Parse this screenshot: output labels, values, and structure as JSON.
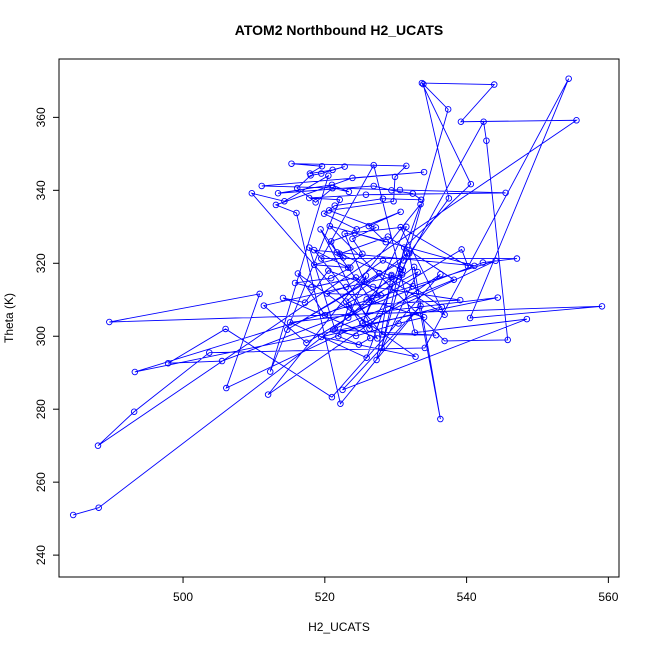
{
  "chart_data": {
    "type": "line",
    "title": "ATOM2 Northbound H2_UCATS",
    "xlabel": "H2_UCATS",
    "ylabel": "Theta (K)",
    "xlim": [
      482.5,
      561.5
    ],
    "ylim": [
      234,
      376
    ],
    "xticks": [
      500,
      520,
      540,
      560
    ],
    "yticks": [
      240,
      260,
      280,
      300,
      320,
      340,
      360
    ],
    "grid": false,
    "legend": "none",
    "color": "#0000ff",
    "series": [
      {
        "marker": "open-circle",
        "points": [
          [
            484.5,
            251
          ],
          [
            488.1,
            253
          ],
          [
            532.6,
            319
          ],
          [
            536.3,
            277.3
          ],
          [
            531.9,
            322.7
          ],
          [
            537.5,
            337.8
          ],
          [
            533.9,
            369.1
          ],
          [
            537.4,
            362.2
          ],
          [
            528.0,
            296.8
          ],
          [
            531.2,
            324.3
          ],
          [
            540.6,
            341.7
          ],
          [
            533.7,
            369.4
          ],
          [
            543.9,
            369.0
          ],
          [
            539.2,
            358.8
          ],
          [
            555.5,
            359.2
          ],
          [
            488.0,
            270.0
          ],
          [
            493.1,
            279.3
          ],
          [
            503.7,
            295.5
          ],
          [
            534.1,
            296.8
          ],
          [
            554.4,
            370.6
          ],
          [
            540.5,
            305.0
          ],
          [
            559.1,
            308.2
          ],
          [
            489.6,
            303.9
          ],
          [
            510.8,
            311.6
          ],
          [
            506.1,
            285.8
          ],
          [
            544.1,
            320.7
          ],
          [
            493.2,
            290.2
          ],
          [
            544.4,
            310.6
          ],
          [
            515.1,
            303.8
          ],
          [
            525.9,
            294.1
          ],
          [
            533.5,
            336.2
          ],
          [
            512.0,
            284.0
          ],
          [
            536.3,
            317.0
          ],
          [
            521.0,
            283.3
          ],
          [
            506.0,
            302.0
          ],
          [
            497.9,
            292.6
          ],
          [
            505.5,
            293.2
          ],
          [
            542.3,
            320.2
          ],
          [
            547.1,
            321.3
          ],
          [
            519.5,
            321.3
          ],
          [
            526.9,
            346.9
          ],
          [
            532.7,
            301.0
          ],
          [
            548.5,
            304.7
          ],
          [
            522.5,
            285.3
          ],
          [
            533.5,
            308.3
          ],
          [
            522.2,
            281.5
          ],
          [
            516.0,
            333.8
          ],
          [
            513.1,
            336.0
          ],
          [
            523.9,
            343.4
          ],
          [
            534.0,
            345.0
          ],
          [
            511.1,
            341.2
          ],
          [
            530.6,
            340.1
          ],
          [
            545.5,
            339.3
          ],
          [
            525.8,
            338.8
          ],
          [
            517.8,
            337.9
          ],
          [
            522.1,
            337.4
          ],
          [
            512.3,
            290.3
          ],
          [
            520.5,
            344.0
          ],
          [
            514.3,
            337.0
          ],
          [
            509.7,
            339.2
          ],
          [
            526.3,
            302.1
          ],
          [
            542.4,
            358.8
          ],
          [
            542.8,
            353.6
          ],
          [
            545.8,
            299.0
          ],
          [
            536.9,
            298.7
          ],
          [
            520.7,
            330.2
          ],
          [
            541.1,
            319.3
          ],
          [
            518.5,
            323.6
          ],
          [
            528.1,
            300.5
          ],
          [
            535.7,
            300.3
          ],
          [
            521.2,
            301.8
          ],
          [
            524.4,
            300.1
          ],
          [
            530.4,
            303.5
          ],
          [
            534.0,
            305.2
          ],
          [
            525.9,
            310.1
          ],
          [
            533.1,
            317.6
          ],
          [
            527.3,
            293.5
          ],
          [
            529.4,
            316.8
          ],
          [
            532.4,
            313.7
          ],
          [
            536.5,
            308.0
          ],
          [
            519.5,
            299.8
          ],
          [
            532.8,
            294.4
          ],
          [
            516.2,
            317.2
          ],
          [
            520.0,
            305.8
          ],
          [
            530.9,
            316.9
          ],
          [
            511.4,
            308.4
          ],
          [
            517.4,
            298.2
          ],
          [
            539.3,
            323.8
          ],
          [
            540.2,
            319.2
          ],
          [
            530.7,
            329.9
          ],
          [
            536.9,
            305.9
          ],
          [
            527.7,
            317.3
          ],
          [
            514.7,
            301.8
          ],
          [
            531.1,
            320.8
          ],
          [
            531.6,
            322.7
          ],
          [
            523.0,
            309.5
          ],
          [
            526.4,
            299.5
          ],
          [
            524.8,
            297.7
          ],
          [
            521.9,
            300.0
          ],
          [
            523.4,
            308.5
          ],
          [
            539.1,
            309.9
          ],
          [
            526.8,
            313.5
          ],
          [
            520.5,
            318.0
          ],
          [
            517.2,
            309.2
          ],
          [
            514.1,
            310.5
          ],
          [
            527.4,
            299.4
          ],
          [
            519.4,
            329.3
          ],
          [
            526.6,
            309.7
          ],
          [
            525.3,
            303.6
          ],
          [
            531.5,
            330.0
          ],
          [
            522.8,
            328.1
          ],
          [
            525.6,
            314.9
          ],
          [
            525.8,
            316.6
          ],
          [
            523.3,
            305.1
          ],
          [
            529.4,
            316.4
          ],
          [
            522.1,
            322.6
          ],
          [
            528.9,
            327.3
          ],
          [
            538.2,
            315.5
          ],
          [
            521.4,
            302.1
          ],
          [
            517.8,
            324.3
          ],
          [
            523.3,
            318.8
          ],
          [
            525.3,
            322.6
          ],
          [
            523.9,
            326.7
          ],
          [
            527.2,
            329.8
          ],
          [
            520.6,
            334.5
          ],
          [
            529.7,
            337.0
          ],
          [
            529.9,
            343.7
          ],
          [
            531.5,
            346.7
          ],
          [
            515.3,
            347.3
          ],
          [
            519.6,
            346.6
          ],
          [
            517.9,
            344.6
          ],
          [
            521.1,
            345.6
          ],
          [
            522.8,
            346.5
          ],
          [
            519.5,
            344.6
          ],
          [
            518.0,
            344.1
          ],
          [
            516.1,
            340.6
          ],
          [
            518.7,
            336.7
          ],
          [
            521.1,
            340.6
          ],
          [
            523.4,
            339.6
          ],
          [
            521.0,
            341.5
          ],
          [
            513.4,
            339.2
          ],
          [
            526.9,
            341.2
          ],
          [
            529.4,
            340.0
          ],
          [
            532.4,
            339.1
          ],
          [
            533.6,
            337.4
          ],
          [
            528.2,
            337.7
          ],
          [
            521.4,
            335.8
          ],
          [
            519.9,
            333.6
          ],
          [
            524.5,
            329.3
          ],
          [
            530.7,
            334.1
          ],
          [
            526.2,
            330.2
          ],
          [
            528.6,
            325.8
          ],
          [
            524.2,
            328.3
          ],
          [
            520.9,
            326.0
          ],
          [
            521.7,
            323.0
          ],
          [
            522.6,
            321.6
          ],
          [
            518.5,
            319.6
          ],
          [
            523.6,
            318.8
          ],
          [
            520.9,
            315.9
          ],
          [
            515.8,
            314.6
          ],
          [
            518.1,
            313.4
          ],
          [
            524.4,
            316.1
          ],
          [
            527.9,
            311.2
          ],
          [
            520.3,
            311.7
          ],
          [
            523.0,
            313.5
          ],
          [
            528.2,
            320.8
          ],
          [
            531.0,
            318.1
          ],
          [
            530.6,
            318.4
          ]
        ]
      }
    ]
  }
}
